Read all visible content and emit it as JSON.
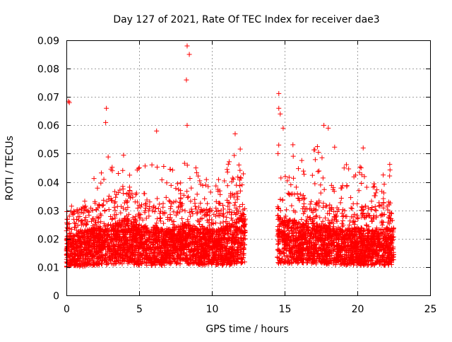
{
  "chart_data": {
    "type": "scatter",
    "title": "Day 127 of 2021, Rate Of TEC Index for receiver dae3",
    "xlabel": "GPS time / hours",
    "ylabel": "ROTI / TECUs",
    "xlim": [
      0,
      25
    ],
    "ylim": [
      0,
      0.09
    ],
    "x_ticks": [
      0,
      5,
      10,
      15,
      20,
      25
    ],
    "x_tick_labels": [
      "0",
      "5",
      "10",
      "15",
      "20",
      "25"
    ],
    "y_ticks": [
      0,
      0.01,
      0.02,
      0.03,
      0.04,
      0.05,
      0.06,
      0.07,
      0.08,
      0.09
    ],
    "y_tick_labels": [
      "0",
      "0.01",
      "0.02",
      "0.03",
      "0.04",
      "0.05",
      "0.06",
      "0.07",
      "0.08",
      "0.09"
    ],
    "grid": true,
    "marker": "plus",
    "color": "#ff0000",
    "data_segments": [
      {
        "x_start": 0.0,
        "x_end": 12.3
      },
      {
        "x_start": 14.5,
        "x_end": 22.5
      }
    ],
    "profile": [
      {
        "x": 0,
        "base": 0.01,
        "spread": 0.012,
        "peak": 0.034
      },
      {
        "x": 1,
        "base": 0.01,
        "spread": 0.014,
        "peak": 0.03
      },
      {
        "x": 2,
        "base": 0.011,
        "spread": 0.015,
        "peak": 0.049
      },
      {
        "x": 3,
        "base": 0.011,
        "spread": 0.016,
        "peak": 0.05
      },
      {
        "x": 4,
        "base": 0.012,
        "spread": 0.018,
        "peak": 0.052
      },
      {
        "x": 5,
        "base": 0.011,
        "spread": 0.016,
        "peak": 0.045
      },
      {
        "x": 6,
        "base": 0.011,
        "spread": 0.015,
        "peak": 0.048
      },
      {
        "x": 7,
        "base": 0.011,
        "spread": 0.014,
        "peak": 0.045
      },
      {
        "x": 8,
        "base": 0.012,
        "spread": 0.016,
        "peak": 0.05
      },
      {
        "x": 9,
        "base": 0.011,
        "spread": 0.015,
        "peak": 0.045
      },
      {
        "x": 10,
        "base": 0.011,
        "spread": 0.014,
        "peak": 0.04
      },
      {
        "x": 11,
        "base": 0.011,
        "spread": 0.015,
        "peak": 0.045
      },
      {
        "x": 12,
        "base": 0.012,
        "spread": 0.02,
        "peak": 0.057
      },
      {
        "x": 15,
        "base": 0.012,
        "spread": 0.018,
        "peak": 0.058
      },
      {
        "x": 16,
        "base": 0.012,
        "spread": 0.016,
        "peak": 0.05
      },
      {
        "x": 17,
        "base": 0.012,
        "spread": 0.016,
        "peak": 0.055
      },
      {
        "x": 18,
        "base": 0.011,
        "spread": 0.015,
        "peak": 0.058
      },
      {
        "x": 19,
        "base": 0.011,
        "spread": 0.014,
        "peak": 0.045
      },
      {
        "x": 20,
        "base": 0.011,
        "spread": 0.015,
        "peak": 0.05
      },
      {
        "x": 21,
        "base": 0.011,
        "spread": 0.014,
        "peak": 0.04
      },
      {
        "x": 22,
        "base": 0.011,
        "spread": 0.015,
        "peak": 0.048
      }
    ],
    "notable_points": [
      {
        "x": 0.15,
        "y": 0.0685
      },
      {
        "x": 0.2,
        "y": 0.068
      },
      {
        "x": 2.75,
        "y": 0.066
      },
      {
        "x": 2.7,
        "y": 0.061
      },
      {
        "x": 6.2,
        "y": 0.058
      },
      {
        "x": 8.3,
        "y": 0.088
      },
      {
        "x": 8.45,
        "y": 0.085
      },
      {
        "x": 8.25,
        "y": 0.076
      },
      {
        "x": 8.3,
        "y": 0.06
      },
      {
        "x": 11.6,
        "y": 0.057
      },
      {
        "x": 14.6,
        "y": 0.0712
      },
      {
        "x": 14.6,
        "y": 0.066
      },
      {
        "x": 14.7,
        "y": 0.064
      },
      {
        "x": 14.9,
        "y": 0.059
      },
      {
        "x": 17.7,
        "y": 0.06
      },
      {
        "x": 18.0,
        "y": 0.059
      },
      {
        "x": 20.4,
        "y": 0.052
      }
    ],
    "point_count": 5200
  }
}
